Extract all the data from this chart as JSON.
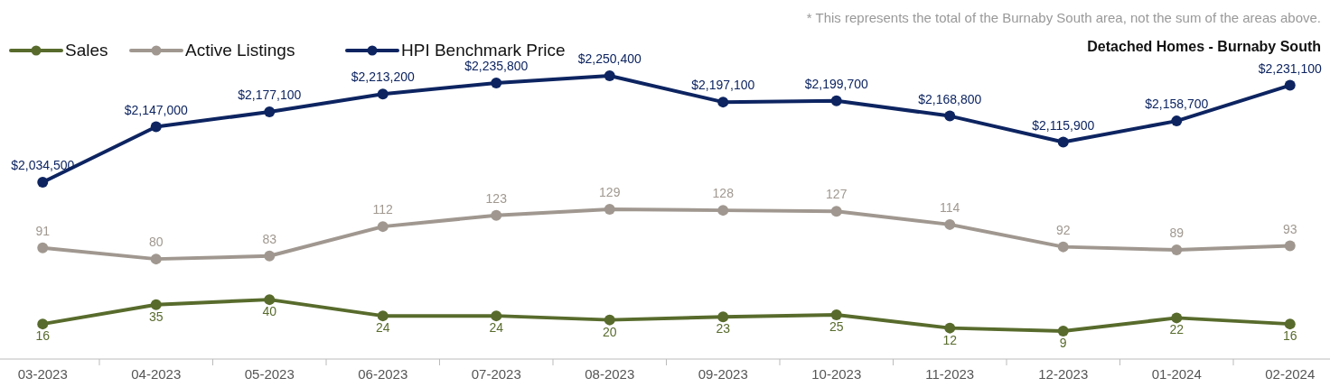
{
  "chart_data": [
    {
      "type": "line",
      "categories": [
        "03-2023",
        "04-2023",
        "05-2023",
        "06-2023",
        "07-2023",
        "08-2023",
        "09-2023",
        "10-2023",
        "11-2023",
        "12-2023",
        "01-2024",
        "02-2024"
      ],
      "series": [
        {
          "name": "Sales",
          "color": "#586b2c",
          "values": [
            16,
            35,
            40,
            24,
            24,
            20,
            23,
            25,
            12,
            9,
            22,
            16
          ]
        },
        {
          "name": "Active Listings",
          "color": "#a09890",
          "values": [
            91,
            80,
            83,
            112,
            123,
            129,
            128,
            127,
            114,
            92,
            89,
            93
          ]
        }
      ],
      "data_labels": true,
      "legend": "top left",
      "marker": "circle",
      "line_style": "solid"
    },
    {
      "type": "line",
      "title": "Detached Homes - Burnaby South",
      "annotations": [
        "* This represents the total of the Burnaby South area, not the sum of the areas above."
      ],
      "categories": [
        "03-2023",
        "04-2023",
        "05-2023",
        "06-2023",
        "07-2023",
        "08-2023",
        "09-2023",
        "10-2023",
        "11-2023",
        "12-2023",
        "01-2024",
        "02-2024"
      ],
      "series": [
        {
          "name": "HPI Benchmark Price",
          "color": "#0d2461",
          "values": [
            2034500,
            2147000,
            2177100,
            2213200,
            2235800,
            2250400,
            2197100,
            2199700,
            2168800,
            2115900,
            2158700,
            2231100
          ],
          "value_labels": [
            "$2,034,500",
            "$2,147,000",
            "$2,177,100",
            "$2,213,200",
            "$2,235,800",
            "$2,250,400",
            "$2,197,100",
            "$2,199,700",
            "$2,168,800",
            "$2,115,900",
            "$2,158,700",
            "$2,231,100"
          ]
        }
      ],
      "tick_labels": false,
      "legend": "top left",
      "marker": "circle",
      "line_style": "solid"
    }
  ]
}
